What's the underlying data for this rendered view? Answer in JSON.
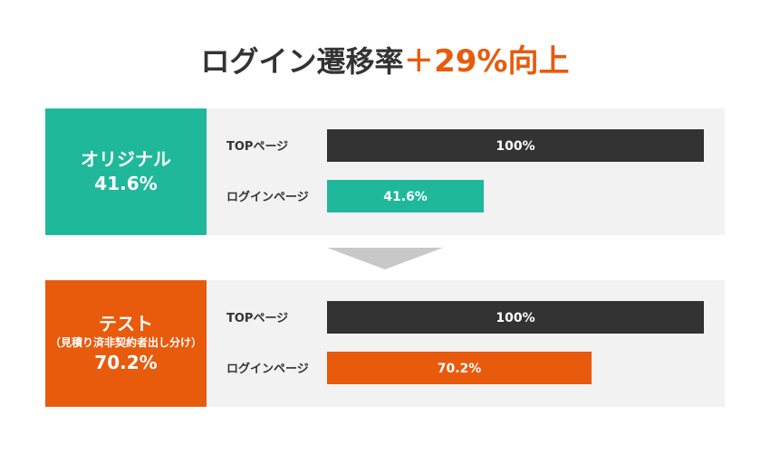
{
  "title": {
    "main": "ログイン遷移率",
    "plus": "+",
    "highlight": "29%向上"
  },
  "colors": {
    "original": "#1fb89a",
    "test": "#e85a0c",
    "top_bar": "#333333",
    "panel_bg": "#f2f2f2",
    "arrow": "#c8c8c8"
  },
  "chart_data": [
    {
      "type": "bar",
      "orientation": "horizontal",
      "group_label": "オリジナル",
      "group_rate": "41.6%",
      "categories": [
        "TOPページ",
        "ログインページ"
      ],
      "values": [
        100,
        41.6
      ],
      "value_labels": [
        "100%",
        "41.6%"
      ],
      "xlim": [
        0,
        100
      ]
    },
    {
      "type": "bar",
      "orientation": "horizontal",
      "group_label": "テスト",
      "group_sublabel": "（見積り済非契約者出し分け）",
      "group_rate": "70.2%",
      "categories": [
        "TOPページ",
        "ログインページ"
      ],
      "values": [
        100,
        70.2
      ],
      "value_labels": [
        "100%",
        "70.2%"
      ],
      "xlim": [
        0,
        100
      ]
    }
  ]
}
